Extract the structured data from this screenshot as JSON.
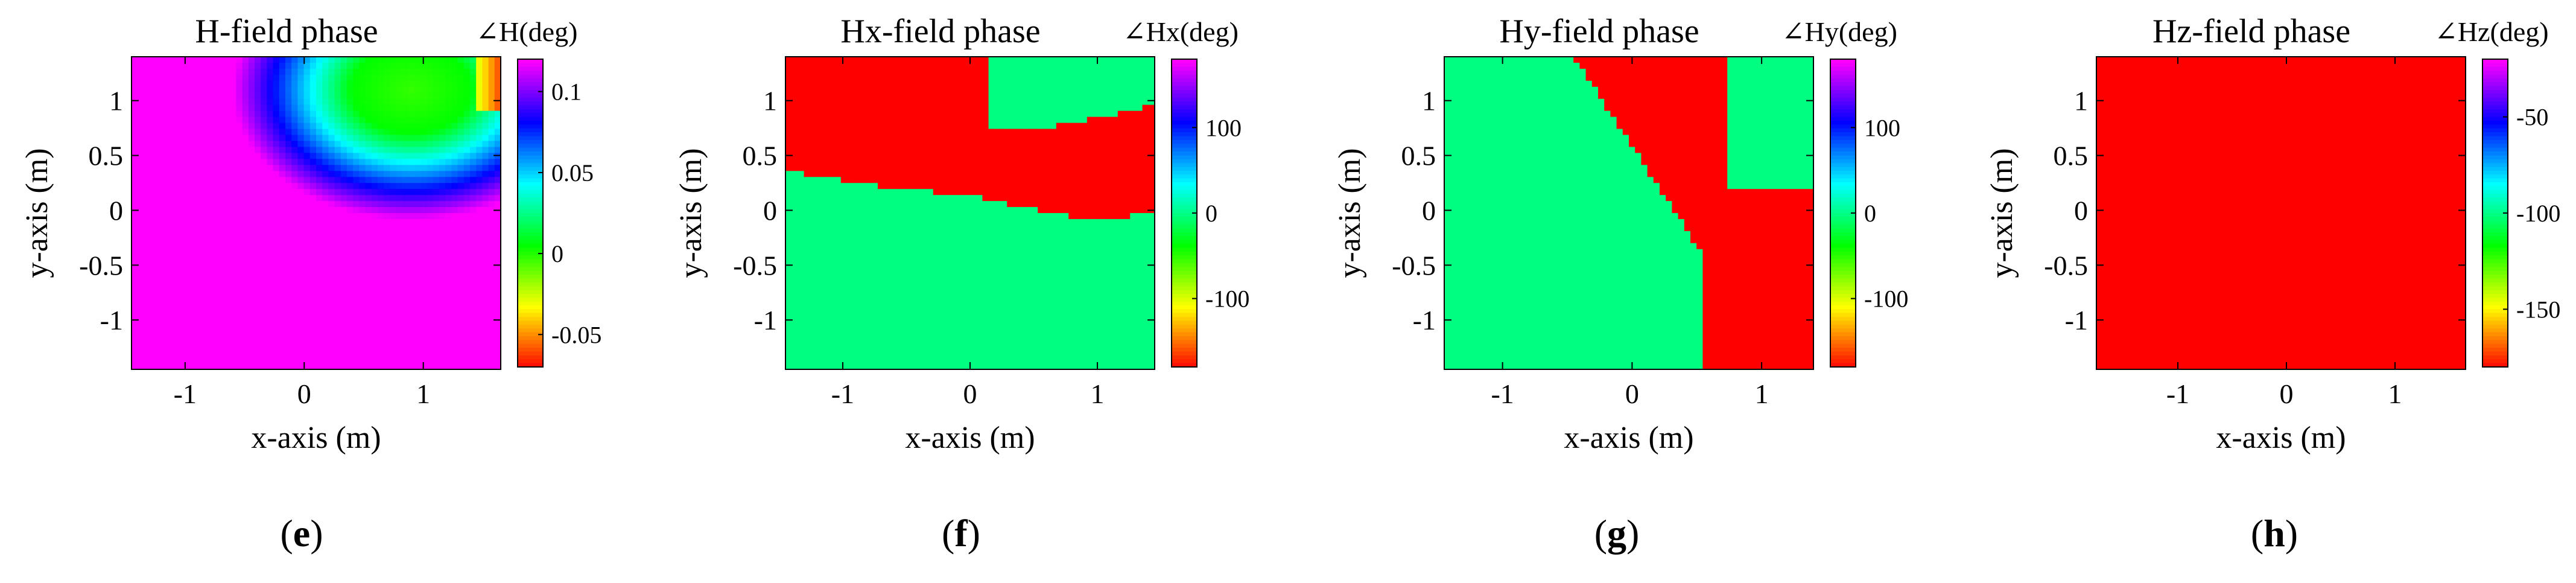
{
  "chart_data": [
    {
      "id": "e",
      "type": "heatmap",
      "title": "H-field phase",
      "colorbar_label": "∠H(deg)",
      "xlabel": "x-axis (m)",
      "ylabel": "y-axis (m)",
      "xlim": [
        -1.45,
        1.65
      ],
      "ylim": [
        -1.45,
        1.4
      ],
      "xticks": [
        -1,
        0,
        1
      ],
      "yticks": [
        1,
        0.5,
        0,
        -0.5,
        -1
      ],
      "clim": [
        -0.07,
        0.12
      ],
      "colorbar_ticks": [
        0.1,
        0.05,
        0,
        -0.05
      ],
      "field": "radial_phase",
      "panel_label": "e"
    },
    {
      "id": "f",
      "type": "heatmap",
      "title": "Hx-field phase",
      "colorbar_label": "∠Hx(deg)",
      "xlabel": "x-axis (m)",
      "ylabel": "y-axis (m)",
      "xlim": [
        -1.45,
        1.45
      ],
      "ylim": [
        -1.45,
        1.4
      ],
      "xticks": [
        -1,
        0,
        1
      ],
      "yticks": [
        1,
        0.5,
        0,
        -0.5,
        -1
      ],
      "clim": [
        -180,
        180
      ],
      "colorbar_ticks": [
        100,
        0,
        -100
      ],
      "field": "binary_hx",
      "panel_label": "f"
    },
    {
      "id": "g",
      "type": "heatmap",
      "title": "Hy-field phase",
      "colorbar_label": "∠Hy(deg)",
      "xlabel": "x-axis (m)",
      "ylabel": "y-axis (m)",
      "xlim": [
        -1.45,
        1.4
      ],
      "ylim": [
        -1.45,
        1.4
      ],
      "xticks": [
        -1,
        0,
        1
      ],
      "yticks": [
        1,
        0.5,
        0,
        -0.5,
        -1
      ],
      "clim": [
        -180,
        180
      ],
      "colorbar_ticks": [
        100,
        0,
        -100
      ],
      "field": "binary_hy",
      "panel_label": "g"
    },
    {
      "id": "h",
      "type": "heatmap",
      "title": "Hz-field phase",
      "colorbar_label": "∠Hz(deg)",
      "xlabel": "x-axis (m)",
      "ylabel": "y-axis (m)",
      "xlim": [
        -1.75,
        1.65
      ],
      "ylim": [
        -1.45,
        1.4
      ],
      "xticks": [
        -1,
        0,
        1
      ],
      "yticks": [
        1,
        0.5,
        0,
        -0.5,
        -1
      ],
      "clim": [
        -180,
        -20
      ],
      "colorbar_ticks": [
        -50,
        -100,
        -150
      ],
      "field": "uniform_red",
      "panel_label": "h"
    }
  ]
}
